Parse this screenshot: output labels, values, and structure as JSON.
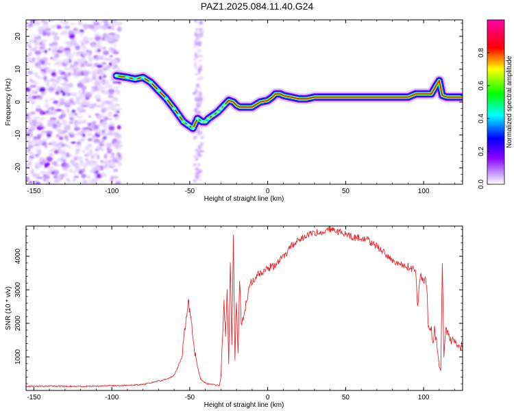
{
  "title": "PAZ1.2025.084.11.40.G24",
  "chart_data": [
    {
      "type": "heatmap",
      "xlabel": "Height of straight line (km)",
      "ylabel": "Frequency (Hz)",
      "xlim": [
        -155,
        125
      ],
      "ylim": [
        -25,
        25
      ],
      "xticks": [
        -150,
        -100,
        -50,
        0,
        50,
        100
      ],
      "yticks": [
        -20,
        -10,
        0,
        10,
        20
      ],
      "grid": false,
      "colorbar": {
        "label": "Normalized spectral amplitude",
        "range": [
          0.0,
          1.0
        ],
        "ticks": [
          "0.0",
          "0.2",
          "0.4",
          "0.6",
          "0.8"
        ],
        "colormap": [
          "#ffffff",
          "#8b00ff",
          "#0000ff",
          "#00ffff",
          "#00ff00",
          "#ffff00",
          "#ff0000",
          "#ff00aa"
        ]
      },
      "ridge": {
        "x": [
          -97,
          -90,
          -85,
          -80,
          -75,
          -70,
          -65,
          -60,
          -57,
          -54,
          -51,
          -48,
          -45,
          -42,
          -40,
          -38,
          -35,
          -32,
          -30,
          -28,
          -25,
          -22,
          -20,
          -18,
          -15,
          -10,
          -5,
          0,
          3,
          5,
          8,
          10,
          15,
          20,
          25,
          30,
          40,
          50,
          60,
          70,
          80,
          90,
          95,
          100,
          105,
          108,
          110,
          112,
          115,
          120,
          125
        ],
        "y": [
          8,
          7.5,
          7,
          7.5,
          6,
          3.5,
          1,
          -2,
          -4,
          -6,
          -7,
          -8,
          -5,
          -6,
          -6,
          -5,
          -4,
          -3,
          -2,
          -1,
          0.5,
          0,
          -1,
          -1.5,
          -1.5,
          -1.5,
          0,
          0.5,
          1.5,
          2.5,
          2.5,
          2,
          1.5,
          1,
          1,
          1.5,
          1.5,
          1.5,
          1.5,
          1.5,
          1.5,
          1.5,
          2.5,
          2.5,
          2.5,
          5,
          6.5,
          2,
          1.5,
          1.5,
          1.5
        ]
      }
    },
    {
      "type": "line",
      "xlabel": "Height of straight line (km)",
      "ylabel": "SNR (10 * v/v)",
      "xlim": [
        -155,
        125
      ],
      "ylim": [
        0,
        4900
      ],
      "xticks": [
        -150,
        -100,
        -50,
        0,
        50,
        100
      ],
      "yticks": [
        1000,
        2000,
        3000,
        4000
      ],
      "grid": false,
      "color": "#e8262a",
      "series": [
        {
          "x": [
            -155,
            -140,
            -120,
            -100,
            -90,
            -80,
            -75,
            -70,
            -65,
            -60,
            -58,
            -55,
            -53,
            -51,
            -49,
            -47,
            -45,
            -43,
            -41,
            -39,
            -37,
            -35,
            -33,
            -31,
            -30,
            -29,
            -28,
            -27,
            -26,
            -25,
            -24,
            -23,
            -22,
            -21,
            -20,
            -19,
            -18,
            -17,
            -15,
            -13,
            -11,
            -9,
            -7,
            -5,
            -3,
            -1,
            0,
            2,
            4,
            6,
            8,
            10,
            12,
            15,
            20,
            25,
            30,
            35,
            40,
            45,
            50,
            55,
            60,
            65,
            70,
            75,
            80,
            85,
            90,
            94,
            95,
            96,
            98,
            100,
            101,
            102,
            103,
            105,
            106,
            107,
            108,
            109,
            110,
            111,
            112,
            113,
            114,
            116,
            118,
            120,
            122,
            125
          ],
          "y": [
            120,
            130,
            120,
            140,
            150,
            180,
            230,
            280,
            330,
            450,
            650,
            1000,
            1900,
            2700,
            2000,
            1200,
            700,
            350,
            250,
            200,
            180,
            170,
            160,
            150,
            400,
            1500,
            2600,
            1500,
            3100,
            800,
            3900,
            1300,
            4600,
            900,
            2600,
            1100,
            3300,
            1900,
            2300,
            2800,
            3200,
            3300,
            3400,
            3500,
            3500,
            3600,
            3600,
            3700,
            3700,
            3800,
            3900,
            4000,
            4100,
            4300,
            4500,
            4600,
            4700,
            4750,
            4800,
            4750,
            4650,
            4550,
            4550,
            4450,
            4300,
            4100,
            3900,
            3750,
            3700,
            3600,
            3550,
            2500,
            3400,
            3250,
            3300,
            3150,
            2000,
            1800,
            1500,
            1800,
            1500,
            1200,
            700,
            600,
            3900,
            1000,
            1800,
            1600,
            1500,
            1400,
            1300,
            1350
          ]
        }
      ]
    }
  ]
}
